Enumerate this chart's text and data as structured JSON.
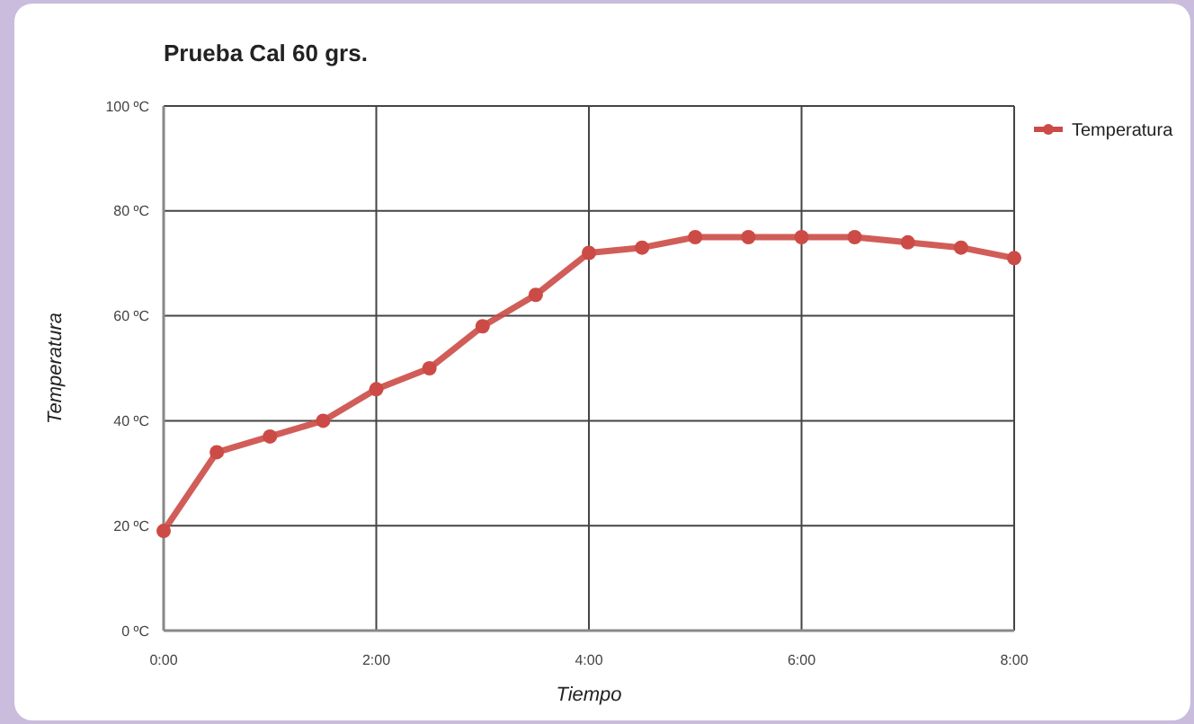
{
  "chart_data": {
    "type": "line",
    "title": "Prueba Cal 60 grs.",
    "xlabel": "Tiempo",
    "ylabel": "Temperatura",
    "x": [
      0,
      0.5,
      1,
      1.5,
      2,
      2.5,
      3,
      3.5,
      4,
      4.5,
      5,
      5.5,
      6,
      6.5,
      7,
      7.5,
      8
    ],
    "series": [
      {
        "name": "Temperatura",
        "color": "#cc4b46",
        "values": [
          19,
          34,
          37,
          40,
          46,
          50,
          58,
          64,
          72,
          73,
          75,
          75,
          75,
          75,
          74,
          73,
          71
        ]
      }
    ],
    "xlim": [
      0,
      8
    ],
    "xticks": [
      {
        "value": 0,
        "label": "0:00"
      },
      {
        "value": 2,
        "label": "2:00"
      },
      {
        "value": 4,
        "label": "4:00"
      },
      {
        "value": 6,
        "label": "6:00"
      },
      {
        "value": 8,
        "label": "8:00"
      }
    ],
    "ylim": [
      0,
      100
    ],
    "yticks": [
      {
        "value": 0,
        "label": "0 ºC"
      },
      {
        "value": 20,
        "label": "20 ºC"
      },
      {
        "value": 40,
        "label": "40 ºC"
      },
      {
        "value": 60,
        "label": "60 ºC"
      },
      {
        "value": 80,
        "label": "80 ºC"
      },
      {
        "value": 100,
        "label": "100 ºC"
      }
    ],
    "grid": true,
    "legend": "top right",
    "marker": "circle",
    "line_style": "solid"
  }
}
